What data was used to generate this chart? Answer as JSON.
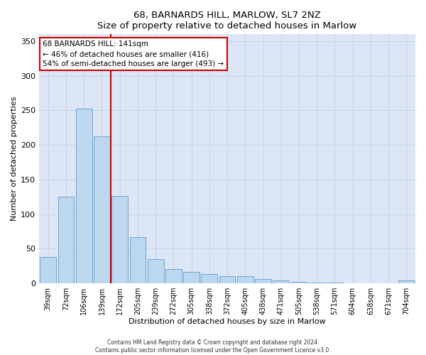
{
  "title": "68, BARNARDS HILL, MARLOW, SL7 2NZ",
  "subtitle": "Size of property relative to detached houses in Marlow",
  "xlabel": "Distribution of detached houses by size in Marlow",
  "ylabel": "Number of detached properties",
  "bar_labels": [
    "39sqm",
    "72sqm",
    "106sqm",
    "139sqm",
    "172sqm",
    "205sqm",
    "239sqm",
    "272sqm",
    "305sqm",
    "338sqm",
    "372sqm",
    "405sqm",
    "438sqm",
    "471sqm",
    "505sqm",
    "538sqm",
    "571sqm",
    "604sqm",
    "638sqm",
    "671sqm",
    "704sqm"
  ],
  "bar_values": [
    38,
    125,
    253,
    212,
    126,
    67,
    35,
    21,
    16,
    13,
    10,
    10,
    6,
    4,
    2,
    1,
    1,
    0,
    0,
    0,
    4
  ],
  "bar_color": "#bdd7ee",
  "bar_edge_color": "#5b9bd5",
  "bar_edge_width": 0.6,
  "vline_x": 3.5,
  "vline_color": "#cc0000",
  "annotation_title": "68 BARNARDS HILL: 141sqm",
  "annotation_line1": "← 46% of detached houses are smaller (416)",
  "annotation_line2": "54% of semi-detached houses are larger (493) →",
  "annotation_box_color": "#ffffff",
  "annotation_box_edge_color": "#cc0000",
  "ylim": [
    0,
    360
  ],
  "yticks": [
    0,
    50,
    100,
    150,
    200,
    250,
    300,
    350
  ],
  "grid_color": "#c8d4e8",
  "background_color": "#dce6f5",
  "footer1": "Contains HM Land Registry data © Crown copyright and database right 2024.",
  "footer2": "Contains public sector information licensed under the Open Government Licence v3.0."
}
